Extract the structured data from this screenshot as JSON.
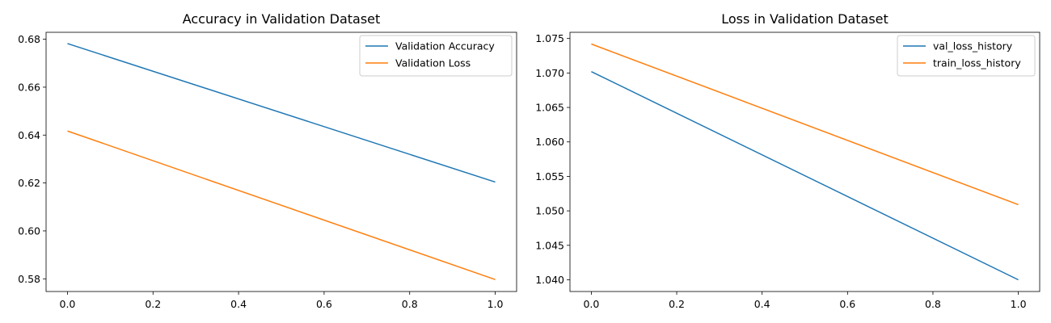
{
  "chart_data": [
    {
      "type": "line",
      "title": "Accuracy in Validation Dataset",
      "xlabel": "",
      "ylabel": "",
      "xlim": [
        -0.05,
        1.05
      ],
      "ylim": [
        0.5747,
        0.6829
      ],
      "xticks": [
        0.0,
        0.2,
        0.4,
        0.6,
        0.8,
        1.0
      ],
      "xtick_labels": [
        "0.0",
        "0.2",
        "0.4",
        "0.6",
        "0.8",
        "1.0"
      ],
      "yticks": [
        0.58,
        0.6,
        0.62,
        0.64,
        0.66,
        0.68
      ],
      "ytick_labels": [
        "0.58",
        "0.60",
        "0.62",
        "0.64",
        "0.66",
        "0.68"
      ],
      "legend_position": "top-right",
      "grid": false,
      "series": [
        {
          "name": "Validation Accuracy",
          "color": "#1f77b4",
          "x": [
            0.0,
            1.0
          ],
          "y": [
            0.6782,
            0.6204
          ]
        },
        {
          "name": "Validation Loss",
          "color": "#ff7f0e",
          "x": [
            0.0,
            1.0
          ],
          "y": [
            0.6417,
            0.5797
          ]
        }
      ]
    },
    {
      "type": "line",
      "title": "Loss in Validation Dataset",
      "xlabel": "",
      "ylabel": "",
      "xlim": [
        -0.05,
        1.05
      ],
      "ylim": [
        1.0383,
        1.0759
      ],
      "xticks": [
        0.0,
        0.2,
        0.4,
        0.6,
        0.8,
        1.0
      ],
      "xtick_labels": [
        "0.0",
        "0.2",
        "0.4",
        "0.6",
        "0.8",
        "1.0"
      ],
      "yticks": [
        1.04,
        1.045,
        1.05,
        1.055,
        1.06,
        1.065,
        1.07,
        1.075
      ],
      "ytick_labels": [
        "1.040",
        "1.045",
        "1.050",
        "1.055",
        "1.060",
        "1.065",
        "1.070",
        "1.075"
      ],
      "legend_position": "top-right",
      "grid": false,
      "series": [
        {
          "name": "val_loss_history",
          "color": "#1f77b4",
          "x": [
            0.0,
            1.0
          ],
          "y": [
            1.0702,
            1.04
          ]
        },
        {
          "name": "train_loss_history",
          "color": "#ff7f0e",
          "x": [
            0.0,
            1.0
          ],
          "y": [
            1.0742,
            1.0509
          ]
        }
      ]
    }
  ]
}
